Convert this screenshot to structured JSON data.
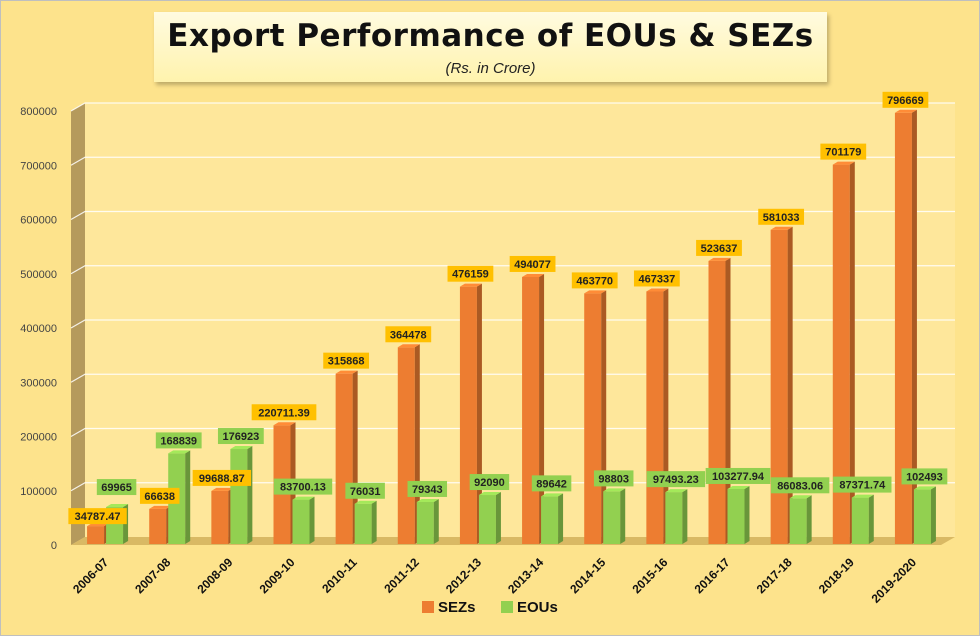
{
  "chart_data": {
    "type": "bar",
    "title": "Export Performance of EOUs & SEZs",
    "subtitle": "(Rs. in Crore)",
    "xlabel": "",
    "ylabel": "",
    "ylim": [
      0,
      800000
    ],
    "yticks": [
      0,
      100000,
      200000,
      300000,
      400000,
      500000,
      600000,
      700000,
      800000
    ],
    "grid": true,
    "legend": "bottom",
    "categories": [
      "2006-07",
      "2007-08",
      "2008-09",
      "2009-10",
      "2010-11",
      "2011-12",
      "2012-13",
      "2013-14",
      "2014-15",
      "2015-16",
      "2016-17",
      "2017-18",
      "2018-19",
      "2019-2020"
    ],
    "series": [
      {
        "name": "SEZs",
        "color": "#ed7d31",
        "values": [
          34787.47,
          66638,
          99688.87,
          220711.39,
          315868,
          364478,
          476159,
          494077,
          463770,
          467337,
          523637,
          581033,
          701179,
          796669
        ],
        "labels": [
          "34787.47",
          "66638",
          "99688.87",
          "220711.39",
          "315868",
          "364478",
          "476159",
          "494077",
          "463770",
          "467337",
          "523637",
          "581033",
          "701179",
          "796669"
        ]
      },
      {
        "name": "EOUs",
        "color": "#92d050",
        "values": [
          69965,
          168839,
          176923,
          83700.13,
          76031,
          79343,
          92090,
          89642,
          98803,
          97493.23,
          103277.94,
          86083.06,
          87371.74,
          102493
        ],
        "labels": [
          "69965",
          "168839",
          "176923",
          "83700.13",
          "76031",
          "79343",
          "92090",
          "89642",
          "98803",
          "97493.23",
          "103277.94",
          "86083.06",
          "87371.74",
          "102493"
        ]
      }
    ]
  }
}
